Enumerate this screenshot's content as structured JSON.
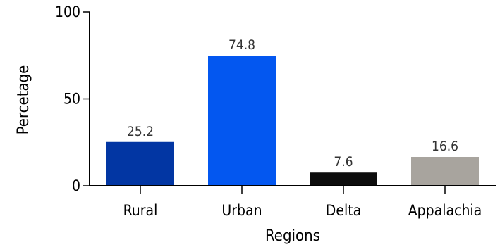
{
  "chart_data": {
    "type": "bar",
    "xlabel": "Regions",
    "ylabel": "Percetage",
    "categories": [
      "Rural",
      "Urban",
      "Delta",
      "Appalachia"
    ],
    "values": [
      25.2,
      74.8,
      7.6,
      16.6
    ],
    "value_labels": [
      "25.2",
      "74.8",
      "7.6",
      "16.6"
    ],
    "colors": [
      "#0236a3",
      "#0357f0",
      "#0d0d0d",
      "#a8a49e"
    ],
    "ylim": [
      0,
      100
    ],
    "yticks": [
      0,
      50,
      100
    ],
    "ytick_labels": [
      "0",
      "50",
      "100"
    ],
    "grid": false,
    "legend": "none"
  }
}
